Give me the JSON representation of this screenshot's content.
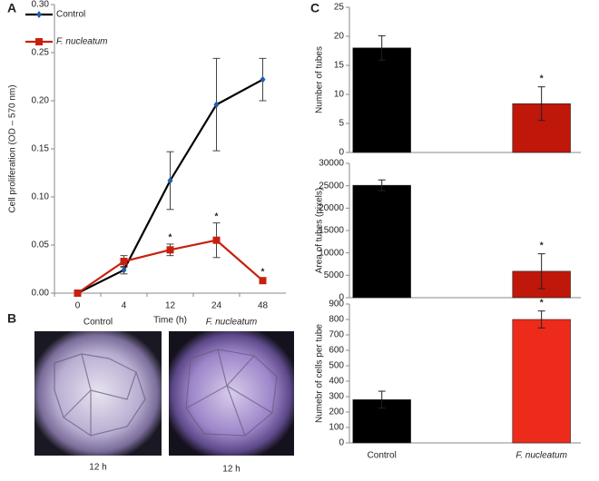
{
  "chart_data": [
    {
      "type": "line",
      "panel": "A",
      "xlabel": "Time (h)",
      "ylabel": "Cell proliferation (OD – 570 nm)",
      "categories": [
        "0",
        "4",
        "12",
        "24",
        "48"
      ],
      "legend": "upper left",
      "ylim": [
        0,
        0.3
      ],
      "yticks": [
        {
          "value": 0,
          "label": "0.00"
        },
        {
          "value": 0.05,
          "label": "0.05"
        },
        {
          "value": 0.1,
          "label": "0.10"
        },
        {
          "value": 0.15,
          "label": "0.15"
        },
        {
          "value": 0.2,
          "label": "0.20"
        },
        {
          "value": 0.25,
          "label": "0.25"
        },
        {
          "value": 0.3,
          "label": "0.30"
        }
      ],
      "series": [
        {
          "name": "Control",
          "color": "#000000",
          "marker": "diamond",
          "marker_color": "#1f5fa8",
          "values": [
            0,
            0.024,
            0.117,
            0.196,
            0.222
          ],
          "errors": [
            0,
            0.004,
            0.03,
            0.048,
            0.022
          ]
        },
        {
          "name": "F. nucleatum",
          "color": "#c8200e",
          "marker": "square",
          "marker_color": "#c8200e",
          "values": [
            0,
            0.033,
            0.045,
            0.055,
            0.013
          ],
          "errors": [
            0,
            0.006,
            0.006,
            0.018,
            0.002
          ],
          "significance": [
            null,
            null,
            "*",
            "*",
            "*"
          ]
        }
      ]
    },
    {
      "type": "bar",
      "panel": "C",
      "ylabel": "Number of tubes",
      "categories": [
        null,
        null
      ],
      "values": [
        18,
        8.4
      ],
      "errors": [
        2.1,
        2.9
      ],
      "colors": [
        "#000000",
        "#c0170b"
      ],
      "significance": [
        null,
        "*"
      ],
      "ylim": [
        0,
        25
      ],
      "yticks": [
        0,
        5,
        10,
        15,
        20,
        25
      ]
    },
    {
      "type": "bar",
      "ylabel": "Area of tubes (pixels)",
      "categories": [
        null,
        null
      ],
      "values": [
        25100,
        5900
      ],
      "errors": [
        1200,
        3900
      ],
      "colors": [
        "#000000",
        "#c0170b"
      ],
      "significance": [
        null,
        "*"
      ],
      "ylim": [
        0,
        30000
      ],
      "yticks": [
        0,
        5000,
        10000,
        15000,
        20000,
        25000,
        30000
      ]
    },
    {
      "type": "bar",
      "ylabel": "Numebr of cells per tube",
      "categories": [
        "Control",
        "F. nucleatum"
      ],
      "values": [
        280,
        800
      ],
      "errors": [
        55,
        55
      ],
      "colors": [
        "#000000",
        "#ee2b1a"
      ],
      "significance": [
        null,
        "*"
      ],
      "ylim": [
        0,
        900
      ],
      "yticks": [
        0,
        100,
        200,
        300,
        400,
        500,
        600,
        700,
        800,
        900
      ]
    }
  ],
  "panel_b": {
    "panel": "B",
    "images": [
      {
        "title": "Control",
        "caption": "12 h"
      },
      {
        "title": "F. nucleatum",
        "caption": "12 h"
      }
    ]
  }
}
